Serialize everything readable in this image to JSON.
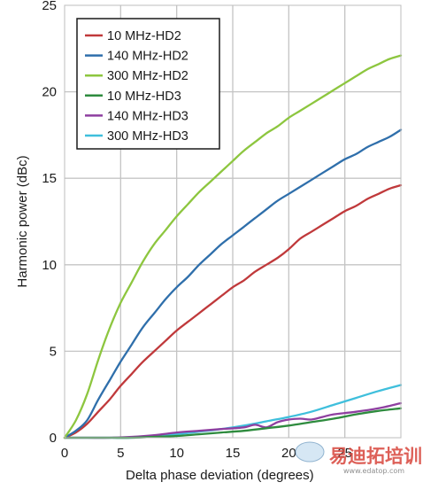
{
  "chart_data": {
    "type": "line",
    "title": "",
    "xlabel": "Delta phase deviation (degrees)",
    "ylabel": "Harmonic power (dBc)",
    "xlim": [
      0,
      30
    ],
    "ylim": [
      0,
      25
    ],
    "x_ticks": [
      0,
      5,
      10,
      15,
      20,
      25
    ],
    "y_ticks": [
      0,
      5,
      10,
      15,
      20,
      25
    ],
    "grid": true,
    "legend_position": "top-left",
    "series": [
      {
        "name": "10 MHz-HD2",
        "color": "#c0393b",
        "x": [
          0,
          1,
          2,
          3,
          4,
          5,
          6,
          7,
          8,
          9,
          10,
          11,
          12,
          13,
          14,
          15,
          16,
          17,
          18,
          19,
          20,
          21,
          22,
          23,
          24,
          25,
          26,
          27,
          28,
          29,
          30
        ],
        "y": [
          0,
          0.3,
          0.8,
          1.5,
          2.2,
          3.0,
          3.7,
          4.4,
          5.0,
          5.6,
          6.2,
          6.7,
          7.2,
          7.7,
          8.2,
          8.7,
          9.1,
          9.6,
          10.0,
          10.4,
          10.9,
          11.5,
          11.9,
          12.3,
          12.7,
          13.1,
          13.4,
          13.8,
          14.1,
          14.4,
          14.6
        ]
      },
      {
        "name": "140 MHz-HD2",
        "color": "#2f6fab",
        "x": [
          0,
          1,
          2,
          3,
          4,
          5,
          6,
          7,
          8,
          9,
          10,
          11,
          12,
          13,
          14,
          15,
          16,
          17,
          18,
          19,
          20,
          21,
          22,
          23,
          24,
          25,
          26,
          27,
          28,
          29,
          30
        ],
        "y": [
          0,
          0.4,
          1.0,
          2.2,
          3.3,
          4.4,
          5.4,
          6.4,
          7.2,
          8.0,
          8.7,
          9.3,
          10.0,
          10.6,
          11.2,
          11.7,
          12.2,
          12.7,
          13.2,
          13.7,
          14.1,
          14.5,
          14.9,
          15.3,
          15.7,
          16.1,
          16.4,
          16.8,
          17.1,
          17.4,
          17.8
        ]
      },
      {
        "name": "300 MHz-HD2",
        "color": "#8dc63f",
        "x": [
          0,
          1,
          2,
          3,
          4,
          5,
          6,
          7,
          8,
          9,
          10,
          11,
          12,
          13,
          14,
          15,
          16,
          17,
          18,
          19,
          20,
          21,
          22,
          23,
          24,
          25,
          26,
          27,
          28,
          29,
          30
        ],
        "y": [
          0,
          1.0,
          2.5,
          4.5,
          6.3,
          7.8,
          9.0,
          10.2,
          11.2,
          12.0,
          12.8,
          13.5,
          14.2,
          14.8,
          15.4,
          16.0,
          16.6,
          17.1,
          17.6,
          18.0,
          18.5,
          18.9,
          19.3,
          19.7,
          20.1,
          20.5,
          20.9,
          21.3,
          21.6,
          21.9,
          22.1
        ]
      },
      {
        "name": "10 MHz-HD3",
        "color": "#2e8b3e",
        "x": [
          0,
          2,
          4,
          6,
          8,
          10,
          12,
          14,
          16,
          18,
          20,
          22,
          24,
          26,
          28,
          30
        ],
        "y": [
          0,
          0,
          0,
          0,
          0.05,
          0.1,
          0.2,
          0.3,
          0.4,
          0.55,
          0.7,
          0.9,
          1.1,
          1.35,
          1.55,
          1.7
        ]
      },
      {
        "name": "140 MHz-HD3",
        "color": "#8e3fa0",
        "x": [
          0,
          2,
          4,
          6,
          8,
          10,
          12,
          14,
          16,
          17,
          18,
          19,
          20,
          21,
          22,
          23,
          24,
          26,
          28,
          30
        ],
        "y": [
          0,
          0,
          0,
          0.05,
          0.15,
          0.3,
          0.4,
          0.5,
          0.6,
          0.75,
          0.6,
          0.9,
          1.05,
          1.1,
          1.05,
          1.2,
          1.35,
          1.5,
          1.7,
          2.0
        ]
      },
      {
        "name": "300 MHz-HD3",
        "color": "#3fbfdc",
        "x": [
          0,
          2,
          4,
          6,
          8,
          10,
          12,
          14,
          16,
          18,
          20,
          22,
          24,
          26,
          28,
          30
        ],
        "y": [
          0,
          0,
          0,
          0,
          0.1,
          0.2,
          0.35,
          0.5,
          0.7,
          0.95,
          1.2,
          1.5,
          1.9,
          2.3,
          2.7,
          3.05
        ]
      }
    ]
  },
  "watermark": {
    "brand_text": "易迪拓培训",
    "url_text": "www.edatop.com"
  }
}
